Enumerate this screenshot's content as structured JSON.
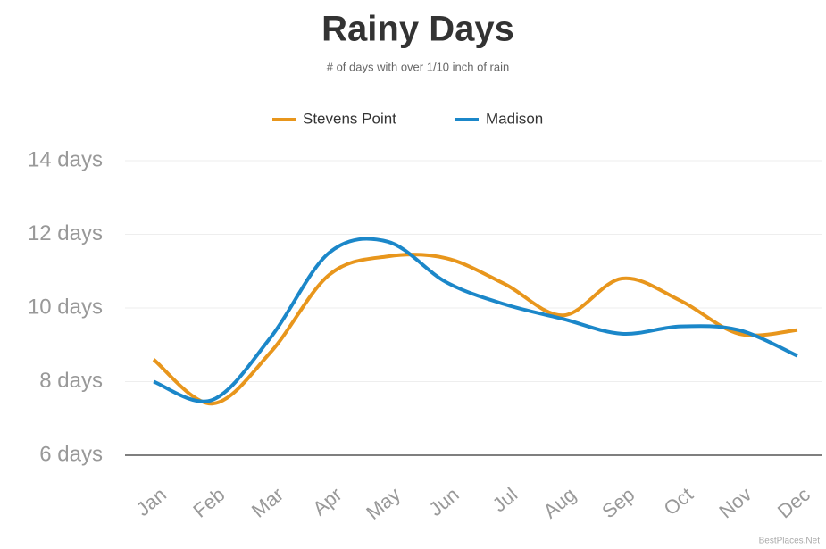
{
  "chart_data": {
    "type": "line",
    "title": "Rainy Days",
    "subtitle": "# of days with over 1/10 inch of rain",
    "categories": [
      "Jan",
      "Feb",
      "Mar",
      "Apr",
      "May",
      "Jun",
      "Jul",
      "Aug",
      "Sep",
      "Oct",
      "Nov",
      "Dec"
    ],
    "series": [
      {
        "name": "Stevens Point",
        "color": "#e8961c",
        "values": [
          8.6,
          7.4,
          8.8,
          10.9,
          11.4,
          11.35,
          10.65,
          9.8,
          10.8,
          10.2,
          9.3,
          9.4
        ]
      },
      {
        "name": "Madison",
        "color": "#1b87c9",
        "values": [
          8.0,
          7.5,
          9.2,
          11.5,
          11.8,
          10.7,
          10.1,
          9.7,
          9.3,
          9.5,
          9.4,
          8.7
        ]
      }
    ],
    "ylim": [
      6,
      14
    ],
    "yticks": [
      {
        "value": 6,
        "label": "6 days"
      },
      {
        "value": 8,
        "label": "8 days"
      },
      {
        "value": 10,
        "label": "10 days"
      },
      {
        "value": 12,
        "label": "12 days"
      },
      {
        "value": 14,
        "label": "14 days"
      }
    ],
    "grid": true,
    "legend": "top",
    "source": "BestPlaces.Net"
  }
}
